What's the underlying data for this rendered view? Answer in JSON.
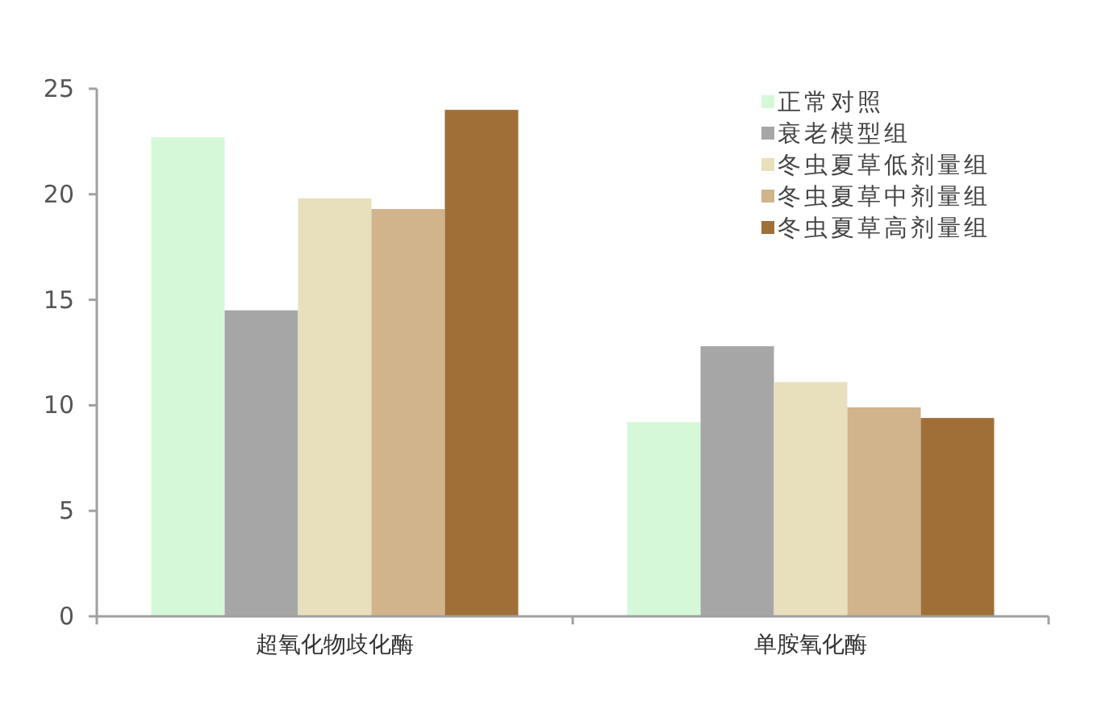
{
  "chart_data": {
    "type": "bar",
    "categories": [
      "超氧化物歧化酶",
      "单胺氧化酶"
    ],
    "series": [
      {
        "name": "正常对照",
        "color": "#d5f9d8",
        "values": [
          22.7,
          9.2
        ]
      },
      {
        "name": "衰老模型组",
        "color": "#a6a6a6",
        "values": [
          14.5,
          12.8
        ]
      },
      {
        "name": "冬虫夏草低剂量组",
        "color": "#e8dfbd",
        "values": [
          19.8,
          11.1
        ]
      },
      {
        "name": "冬虫夏草中剂量组",
        "color": "#d1b38c",
        "values": [
          19.3,
          9.9
        ]
      },
      {
        "name": "冬虫夏草高剂量组",
        "color": "#a06e37",
        "values": [
          24.0,
          9.4
        ]
      }
    ],
    "ylim": [
      0,
      25
    ],
    "yticks": [
      0,
      5,
      10,
      15,
      20,
      25
    ],
    "grid": false,
    "legend": "top right"
  }
}
